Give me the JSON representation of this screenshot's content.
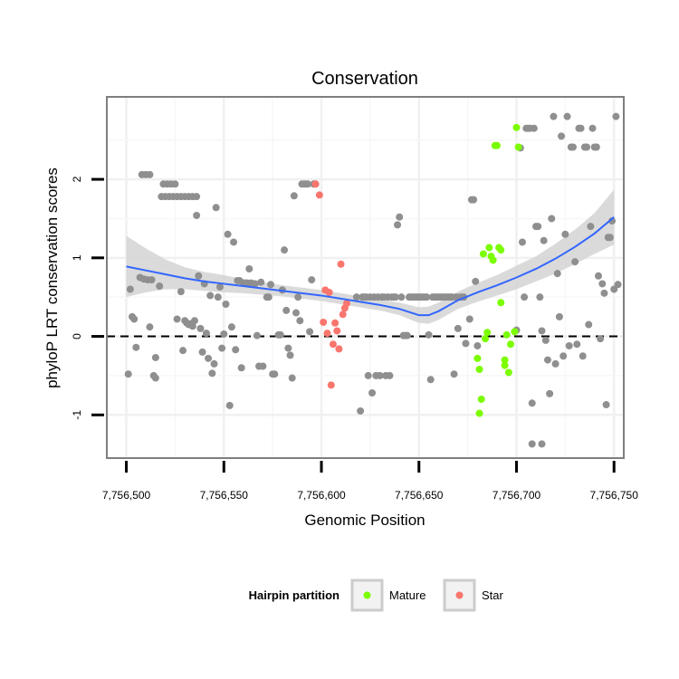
{
  "chart_data": {
    "type": "scatter",
    "title": "Conservation",
    "xlabel": "Genomic Position",
    "ylabel": "phyloP LRT conservation scores",
    "xlim": [
      7756490,
      7756755
    ],
    "ylim": [
      -1.55,
      3.05
    ],
    "xticks": [
      7756500,
      7756550,
      7756600,
      7756650,
      7756700,
      7756750
    ],
    "xtick_labels": [
      "7,756,500",
      "7,756,550",
      "7,756,600",
      "7,756,650",
      "7,756,700",
      "7,756,750"
    ],
    "yticks": [
      -1,
      0,
      1,
      2
    ],
    "ytick_labels": [
      "-1",
      "0",
      "1",
      "2"
    ],
    "grid": true,
    "reference_line": {
      "y": 0,
      "style": "dashed",
      "color": "#000000"
    },
    "legend": {
      "title": "Hairpin partition",
      "position": "bottom",
      "entries": [
        {
          "label": "Mature",
          "color": "#7cfc00"
        },
        {
          "label": "Star",
          "color": "#f8766d"
        }
      ]
    },
    "colors": {
      "other": "#8f8f8f",
      "mature": "#7cfc00",
      "star": "#f8766d",
      "smooth": "#3366ff",
      "band": "#d3d3d3"
    },
    "smooth": {
      "x": [
        7756500,
        7756510,
        7756520,
        7756530,
        7756540,
        7756550,
        7756560,
        7756570,
        7756580,
        7756590,
        7756600,
        7756610,
        7756620,
        7756630,
        7756640,
        7756645,
        7756650,
        7756655,
        7756660,
        7756665,
        7756670,
        7756680,
        7756690,
        7756700,
        7756710,
        7756720,
        7756730,
        7756740,
        7756750
      ],
      "y": [
        0.89,
        0.84,
        0.79,
        0.74,
        0.7,
        0.67,
        0.64,
        0.61,
        0.58,
        0.55,
        0.52,
        0.48,
        0.44,
        0.4,
        0.35,
        0.31,
        0.27,
        0.27,
        0.32,
        0.39,
        0.46,
        0.56,
        0.65,
        0.75,
        0.86,
        0.99,
        1.14,
        1.31,
        1.52
      ],
      "lower": [
        0.5,
        0.56,
        0.6,
        0.6,
        0.58,
        0.56,
        0.55,
        0.53,
        0.51,
        0.48,
        0.45,
        0.41,
        0.37,
        0.33,
        0.27,
        0.22,
        0.17,
        0.16,
        0.21,
        0.28,
        0.35,
        0.44,
        0.52,
        0.6,
        0.7,
        0.8,
        0.92,
        1.05,
        1.17
      ],
      "upper": [
        1.28,
        1.12,
        0.98,
        0.88,
        0.82,
        0.78,
        0.73,
        0.69,
        0.65,
        0.62,
        0.59,
        0.55,
        0.51,
        0.47,
        0.43,
        0.4,
        0.37,
        0.38,
        0.43,
        0.5,
        0.57,
        0.68,
        0.78,
        0.9,
        1.02,
        1.18,
        1.36,
        1.57,
        1.87
      ]
    },
    "series": [
      {
        "name": "Other",
        "points": [
          [
            7756502,
            0.6
          ],
          [
            7756503,
            0.25
          ],
          [
            7756504,
            0.22
          ],
          [
            7756505,
            -0.14
          ],
          [
            7756501,
            -0.48
          ],
          [
            7756508,
            2.06
          ],
          [
            7756510,
            2.06
          ],
          [
            7756512,
            2.06
          ],
          [
            7756507,
            0.75
          ],
          [
            7756509,
            0.73
          ],
          [
            7756511,
            0.72
          ],
          [
            7756513,
            0.72
          ],
          [
            7756512,
            0.12
          ],
          [
            7756515,
            -0.27
          ],
          [
            7756514,
            -0.5
          ],
          [
            7756515,
            -0.53
          ],
          [
            7756517,
            0.64
          ],
          [
            7756518,
            1.78
          ],
          [
            7756520,
            1.78
          ],
          [
            7756522,
            1.78
          ],
          [
            7756524,
            1.78
          ],
          [
            7756526,
            1.78
          ],
          [
            7756528,
            1.78
          ],
          [
            7756530,
            1.78
          ],
          [
            7756532,
            1.78
          ],
          [
            7756534,
            1.78
          ],
          [
            7756536,
            1.78
          ],
          [
            7756519,
            1.94
          ],
          [
            7756521,
            1.94
          ],
          [
            7756523,
            1.94
          ],
          [
            7756525,
            1.94
          ],
          [
            7756526,
            0.22
          ],
          [
            7756528,
            0.57
          ],
          [
            7756529,
            -0.18
          ],
          [
            7756530,
            0.2
          ],
          [
            7756531,
            0.17
          ],
          [
            7756532,
            0.15
          ],
          [
            7756533,
            0.16
          ],
          [
            7756534,
            0.13
          ],
          [
            7756535,
            0.2
          ],
          [
            7756536,
            1.54
          ],
          [
            7756537,
            0.77
          ],
          [
            7756538,
            0.1
          ],
          [
            7756539,
            -0.2
          ],
          [
            7756540,
            0.67
          ],
          [
            7756541,
            0.04
          ],
          [
            7756542,
            -0.28
          ],
          [
            7756543,
            0.52
          ],
          [
            7756544,
            -0.47
          ],
          [
            7756545,
            -0.35
          ],
          [
            7756546,
            1.64
          ],
          [
            7756547,
            0.5
          ],
          [
            7756548,
            0.63
          ],
          [
            7756549,
            -0.15
          ],
          [
            7756550,
            0.03
          ],
          [
            7756551,
            0.41
          ],
          [
            7756552,
            1.3
          ],
          [
            7756553,
            -0.88
          ],
          [
            7756554,
            0.12
          ],
          [
            7756555,
            1.2
          ],
          [
            7756556,
            -0.17
          ],
          [
            7756557,
            0.71
          ],
          [
            7756558,
            0.71
          ],
          [
            7756559,
            -0.4
          ],
          [
            7756560,
            0.68
          ],
          [
            7756561,
            0.68
          ],
          [
            7756562,
            0.68
          ],
          [
            7756563,
            0.86
          ],
          [
            7756564,
            0.68
          ],
          [
            7756565,
            0.67
          ],
          [
            7756566,
            0.67
          ],
          [
            7756567,
            0.01
          ],
          [
            7756568,
            -0.38
          ],
          [
            7756569,
            0.69
          ],
          [
            7756570,
            -0.38
          ],
          [
            7756572,
            0.5
          ],
          [
            7756573,
            0.5
          ],
          [
            7756574,
            0.66
          ],
          [
            7756575,
            -0.48
          ],
          [
            7756576,
            -0.48
          ],
          [
            7756578,
            0.02
          ],
          [
            7756579,
            0.02
          ],
          [
            7756580,
            0.59
          ],
          [
            7756581,
            1.1
          ],
          [
            7756582,
            0.33
          ],
          [
            7756583,
            -0.15
          ],
          [
            7756584,
            -0.24
          ],
          [
            7756585,
            -0.53
          ],
          [
            7756586,
            1.79
          ],
          [
            7756587,
            0.3
          ],
          [
            7756588,
            0.5
          ],
          [
            7756589,
            0.2
          ],
          [
            7756590,
            1.94
          ],
          [
            7756591,
            1.94
          ],
          [
            7756592,
            1.94
          ],
          [
            7756593,
            1.94
          ],
          [
            7756594,
            0.06
          ],
          [
            7756595,
            0.72
          ],
          [
            7756596,
            1.94
          ],
          [
            7756597,
            1.94
          ],
          [
            7756618,
            0.5
          ],
          [
            7756620,
            -0.95
          ],
          [
            7756621,
            0.5
          ],
          [
            7756622,
            0.5
          ],
          [
            7756623,
            0.5
          ],
          [
            7756624,
            -0.5
          ],
          [
            7756625,
            0.5
          ],
          [
            7756626,
            -0.72
          ],
          [
            7756627,
            0.5
          ],
          [
            7756628,
            -0.5
          ],
          [
            7756629,
            0.5
          ],
          [
            7756630,
            -0.5
          ],
          [
            7756631,
            0.5
          ],
          [
            7756632,
            0.5
          ],
          [
            7756633,
            -0.5
          ],
          [
            7756634,
            0.5
          ],
          [
            7756635,
            -0.5
          ],
          [
            7756636,
            0.5
          ],
          [
            7756637,
            0.5
          ],
          [
            7756638,
            0.5
          ],
          [
            7756639,
            1.42
          ],
          [
            7756640,
            1.52
          ],
          [
            7756641,
            0.5
          ],
          [
            7756642,
            0.01
          ],
          [
            7756643,
            0.01
          ],
          [
            7756644,
            0.01
          ],
          [
            7756645,
            0.5
          ],
          [
            7756646,
            0.5
          ],
          [
            7756647,
            0.5
          ],
          [
            7756648,
            0.5
          ],
          [
            7756649,
            0.5
          ],
          [
            7756650,
            0.5
          ],
          [
            7756651,
            0.5
          ],
          [
            7756652,
            0.5
          ],
          [
            7756653,
            0.5
          ],
          [
            7756654,
            0.5
          ],
          [
            7756655,
            0.02
          ],
          [
            7756656,
            -0.55
          ],
          [
            7756657,
            0.5
          ],
          [
            7756658,
            0.5
          ],
          [
            7756659,
            0.5
          ],
          [
            7756660,
            0.5
          ],
          [
            7756661,
            0.5
          ],
          [
            7756662,
            0.5
          ],
          [
            7756663,
            0.5
          ],
          [
            7756664,
            0.5
          ],
          [
            7756665,
            0.5
          ],
          [
            7756666,
            0.5
          ],
          [
            7756667,
            0.5
          ],
          [
            7756668,
            -0.48
          ],
          [
            7756669,
            0.5
          ],
          [
            7756670,
            0.1
          ],
          [
            7756671,
            0.5
          ],
          [
            7756672,
            0.5
          ],
          [
            7756673,
            0.5
          ],
          [
            7756674,
            -0.09
          ],
          [
            7756676,
            0.22
          ],
          [
            7756677,
            1.74
          ],
          [
            7756678,
            1.74
          ],
          [
            7756679,
            0.7
          ],
          [
            7756680,
            -0.12
          ],
          [
            7756700,
            0.08
          ],
          [
            7756702,
            2.4
          ],
          [
            7756703,
            1.2
          ],
          [
            7756704,
            0.5
          ],
          [
            7756705,
            2.65
          ],
          [
            7756706,
            2.65
          ],
          [
            7756707,
            2.65
          ],
          [
            7756708,
            -0.85
          ],
          [
            7756709,
            2.65
          ],
          [
            7756710,
            1.4
          ],
          [
            7756711,
            1.4
          ],
          [
            7756712,
            0.5
          ],
          [
            7756713,
            0.07
          ],
          [
            7756714,
            1.22
          ],
          [
            7756715,
            -0.05
          ],
          [
            7756716,
            -0.3
          ],
          [
            7756717,
            -0.73
          ],
          [
            7756718,
            1.5
          ],
          [
            7756719,
            2.8
          ],
          [
            7756720,
            -0.35
          ],
          [
            7756721,
            0.8
          ],
          [
            7756722,
            0.25
          ],
          [
            7756723,
            2.55
          ],
          [
            7756724,
            -0.25
          ],
          [
            7756725,
            1.3
          ],
          [
            7756726,
            2.8
          ],
          [
            7756727,
            -0.12
          ],
          [
            7756728,
            2.41
          ],
          [
            7756729,
            2.41
          ],
          [
            7756730,
            0.95
          ],
          [
            7756731,
            -0.1
          ],
          [
            7756732,
            2.65
          ],
          [
            7756733,
            2.65
          ],
          [
            7756734,
            -0.25
          ],
          [
            7756735,
            2.41
          ],
          [
            7756736,
            2.41
          ],
          [
            7756737,
            0.15
          ],
          [
            7756738,
            1.4
          ],
          [
            7756739,
            2.65
          ],
          [
            7756740,
            2.41
          ],
          [
            7756741,
            2.41
          ],
          [
            7756742,
            0.77
          ],
          [
            7756743,
            -0.03
          ],
          [
            7756744,
            0.67
          ],
          [
            7756745,
            0.55
          ],
          [
            7756746,
            -0.87
          ],
          [
            7756747,
            1.26
          ],
          [
            7756748,
            1.26
          ],
          [
            7756749,
            1.47
          ],
          [
            7756750,
            0.6
          ],
          [
            7756751,
            2.8
          ],
          [
            7756752,
            0.66
          ],
          [
            7756708,
            -1.37
          ],
          [
            7756713,
            -1.37
          ]
        ]
      },
      {
        "name": "Mature",
        "points": [
          [
            7756680,
            -0.28
          ],
          [
            7756681,
            -0.42
          ],
          [
            7756682,
            -0.8
          ],
          [
            7756681,
            -0.98
          ],
          [
            7756683,
            1.05
          ],
          [
            7756684,
            -0.03
          ],
          [
            7756685,
            0.05
          ],
          [
            7756686,
            1.13
          ],
          [
            7756687,
            1.02
          ],
          [
            7756688,
            0.97
          ],
          [
            7756689,
            2.43
          ],
          [
            7756690,
            2.43
          ],
          [
            7756691,
            1.13
          ],
          [
            7756692,
            1.1
          ],
          [
            7756692,
            0.43
          ],
          [
            7756694,
            -0.3
          ],
          [
            7756694,
            -0.37
          ],
          [
            7756695,
            0.02
          ],
          [
            7756696,
            -0.46
          ],
          [
            7756697,
            -0.1
          ],
          [
            7756699,
            0.06
          ],
          [
            7756700,
            2.66
          ],
          [
            7756701,
            2.41
          ]
        ]
      },
      {
        "name": "Star",
        "points": [
          [
            7756597,
            1.94
          ],
          [
            7756599,
            1.8
          ],
          [
            7756601,
            0.18
          ],
          [
            7756602,
            0.59
          ],
          [
            7756603,
            0.04
          ],
          [
            7756604,
            0.56
          ],
          [
            7756605,
            -0.62
          ],
          [
            7756606,
            -0.1
          ],
          [
            7756607,
            0.17
          ],
          [
            7756608,
            0.07
          ],
          [
            7756609,
            -0.16
          ],
          [
            7756610,
            0.92
          ],
          [
            7756611,
            0.28
          ],
          [
            7756612,
            0.36
          ],
          [
            7756613,
            0.42
          ]
        ]
      }
    ]
  }
}
